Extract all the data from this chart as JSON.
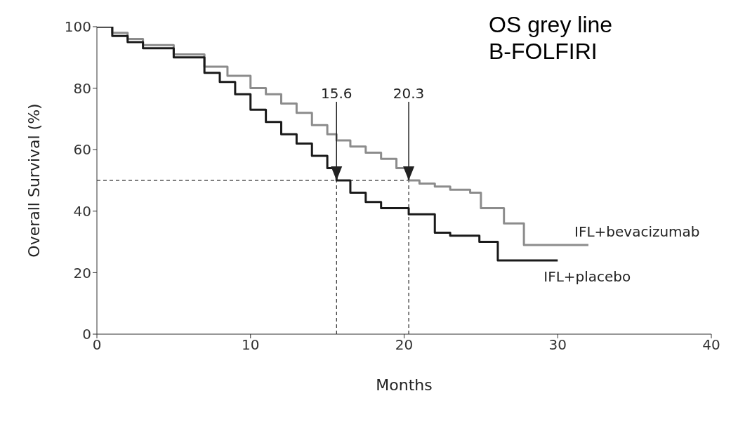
{
  "chart_data": {
    "type": "line",
    "xlabel": "Months",
    "ylabel": "Overall Survival (%)",
    "xlim": [
      0,
      40
    ],
    "xticks": [
      0,
      10,
      20,
      30,
      40
    ],
    "ylim": [
      0,
      100
    ],
    "yticks": [
      0,
      20,
      40,
      60,
      80,
      100
    ],
    "grid": false,
    "legend": false,
    "marker": "none",
    "line_style": "solid",
    "series": [
      {
        "name": "IFL+bevacizumab",
        "type": "step",
        "color": "#8c8c8c",
        "x": [
          0,
          1,
          2,
          3,
          5,
          7,
          8.5,
          10,
          11,
          12,
          13,
          14,
          15,
          15.6,
          16.5,
          17.5,
          18.5,
          19.5,
          20.3,
          21,
          22,
          23,
          24.3,
          25,
          26.5,
          27.8,
          32
        ],
        "values": [
          100,
          98,
          96,
          94,
          91,
          87,
          84,
          80,
          78,
          75,
          72,
          68,
          65,
          63,
          61,
          59,
          57,
          54,
          50,
          49,
          48,
          47,
          46,
          41,
          36,
          29,
          29
        ]
      },
      {
        "name": "IFL+placebo",
        "type": "step",
        "color": "#1a1a1a",
        "x": [
          0,
          1,
          2,
          3,
          5,
          7,
          8,
          9,
          10,
          11,
          12,
          13,
          14,
          15,
          15.6,
          16.5,
          17.5,
          18.5,
          20.3,
          22,
          23,
          24.9,
          26.1,
          30
        ],
        "values": [
          100,
          97,
          95,
          93,
          90,
          85,
          82,
          78,
          73,
          69,
          65,
          62,
          58,
          54,
          50,
          46,
          43,
          41,
          39,
          33,
          32,
          30,
          24,
          24
        ]
      }
    ],
    "ref_lines": [
      {
        "axis": "y",
        "value": 50,
        "line_style": "dashed",
        "color": "#000000"
      },
      {
        "axis": "x",
        "value": 15.6,
        "line_style": "dashed",
        "color": "#000000"
      },
      {
        "axis": "x",
        "value": 20.3,
        "line_style": "dashed",
        "color": "#000000"
      }
    ],
    "annotations": [
      {
        "text": "15.6",
        "x": 15.6,
        "y": 50
      },
      {
        "text": "20.3",
        "x": 20.3,
        "y": 50
      },
      "OS grey line\nB-FOLFIRI"
    ]
  }
}
